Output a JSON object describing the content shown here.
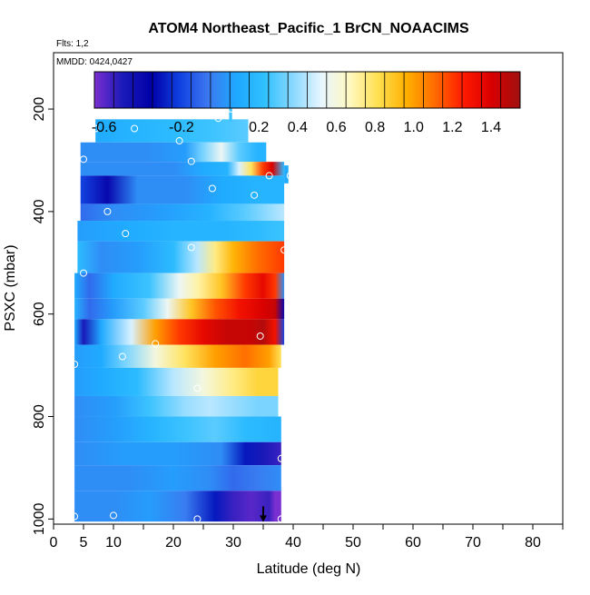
{
  "chart_data": {
    "type": "heatmap",
    "title": "ATOM4 Northeast_Pacific_1 BrCN_NOAACIMS",
    "flights_label": "Flts: 1,2",
    "mmdd_label": "MMDD: 0424,0427",
    "xlabel": "Latitude (deg N)",
    "ylabel": "PSXC (mbar)",
    "xlim": [
      0,
      85
    ],
    "ylim": [
      1010,
      90
    ],
    "y_inverted": true,
    "x_ticks": [
      0,
      5,
      10,
      20,
      30,
      40,
      50,
      60,
      70,
      80
    ],
    "x_tick_labels": [
      "0",
      "5",
      "10",
      "20",
      "30",
      "40",
      "50",
      "60",
      "70",
      "80"
    ],
    "y_ticks": [
      200,
      400,
      600,
      800,
      1000
    ],
    "y_tick_labels": [
      "200",
      "400",
      "600",
      "800",
      "1000"
    ],
    "colorbar": {
      "range": [
        -0.65,
        1.55
      ],
      "tick_values": [
        -0.6,
        -0.2,
        0.2,
        0.4,
        0.6,
        0.8,
        1.0,
        1.2,
        1.4
      ],
      "tick_labels": [
        "-0.6",
        "-0.2",
        "0.2",
        "0.4",
        "0.6",
        "0.8",
        "1.0",
        "1.2",
        "1.4"
      ],
      "stops": [
        "#7a2fd0",
        "#1a1ab8",
        "#0000a8",
        "#1040e0",
        "#3c78f0",
        "#1ea8ff",
        "#30c0ff",
        "#8ad8ff",
        "#e8f6ff",
        "#fff8c0",
        "#ffe050",
        "#ffb000",
        "#ff6a00",
        "#ff1a00",
        "#d80000",
        "#a01010"
      ]
    },
    "bands": [
      {
        "p_top": 220,
        "p_bot": 265,
        "lat_start": 7,
        "lat_end": 32.5,
        "stops": [
          [
            7,
            0.1
          ],
          [
            13,
            0.15
          ],
          [
            20,
            0.2
          ],
          [
            26,
            0.25
          ],
          [
            32.5,
            0.3
          ]
        ]
      },
      {
        "p_top": 265,
        "p_bot": 303,
        "lat_start": 4.5,
        "lat_end": 35.5,
        "stops": [
          [
            4.5,
            0.0
          ],
          [
            15,
            0.0
          ],
          [
            22,
            0.05
          ],
          [
            25,
            0.35
          ],
          [
            28,
            0.55
          ],
          [
            31,
            0.3
          ],
          [
            34,
            0.15
          ],
          [
            35.5,
            0.15
          ]
        ]
      },
      {
        "p_top": 303,
        "p_bot": 330,
        "lat_start": 4.5,
        "lat_end": 38.5,
        "stops": [
          [
            4.5,
            0.0
          ],
          [
            20,
            0.0
          ],
          [
            25,
            0.1
          ],
          [
            29,
            0.15
          ],
          [
            31,
            0.5
          ],
          [
            33,
            0.8
          ],
          [
            35,
            1.2
          ],
          [
            36.5,
            1.4
          ],
          [
            38.5,
            0.2
          ]
        ]
      },
      {
        "p_top": 330,
        "p_bot": 385,
        "lat_start": 4.5,
        "lat_end": 38.5,
        "stops": [
          [
            4.5,
            -0.2
          ],
          [
            9,
            -0.4
          ],
          [
            14,
            0.0
          ],
          [
            22,
            0.0
          ],
          [
            28,
            0.1
          ],
          [
            34,
            0.15
          ],
          [
            38.5,
            0.15
          ]
        ]
      },
      {
        "p_top": 385,
        "p_bot": 418,
        "lat_start": 4.5,
        "lat_end": 38.5,
        "stops": [
          [
            4.5,
            -0.1
          ],
          [
            10,
            0.0
          ],
          [
            18,
            0.05
          ],
          [
            26,
            0.15
          ],
          [
            32,
            0.3
          ],
          [
            38.5,
            0.45
          ]
        ]
      },
      {
        "p_top": 418,
        "p_bot": 458,
        "lat_start": 4,
        "lat_end": 38.5,
        "stops": [
          [
            4,
            0.05
          ],
          [
            12,
            0.1
          ],
          [
            20,
            0.15
          ],
          [
            28,
            0.15
          ],
          [
            34,
            0.2
          ],
          [
            38.5,
            0.25
          ]
        ]
      },
      {
        "p_top": 458,
        "p_bot": 520,
        "lat_start": 4,
        "lat_end": 38.5,
        "stops": [
          [
            4,
            0.2
          ],
          [
            8,
            0.0
          ],
          [
            14,
            0.05
          ],
          [
            20,
            0.2
          ],
          [
            24,
            0.45
          ],
          [
            27,
            0.75
          ],
          [
            30,
            0.95
          ],
          [
            34,
            1.1
          ],
          [
            38.5,
            1.2
          ]
        ]
      },
      {
        "p_top": 520,
        "p_bot": 570,
        "lat_start": 3.5,
        "lat_end": 38.5,
        "stops": [
          [
            3.5,
            0.1
          ],
          [
            6,
            -0.1
          ],
          [
            10,
            0.1
          ],
          [
            16,
            0.25
          ],
          [
            21,
            0.55
          ],
          [
            24,
            0.7
          ],
          [
            28,
            0.9
          ],
          [
            32,
            1.2
          ],
          [
            35,
            1.35
          ],
          [
            37,
            1.2
          ],
          [
            38.5,
            0.0
          ]
        ]
      },
      {
        "p_top": 570,
        "p_bot": 610,
        "lat_start": 3.5,
        "lat_end": 38.5,
        "stops": [
          [
            3.5,
            0.15
          ],
          [
            6,
            -0.1
          ],
          [
            10,
            0.05
          ],
          [
            15,
            0.3
          ],
          [
            19,
            0.55
          ],
          [
            23,
            0.9
          ],
          [
            27,
            1.15
          ],
          [
            31,
            1.3
          ],
          [
            35,
            1.4
          ],
          [
            37,
            1.45
          ],
          [
            38.5,
            -0.4
          ]
        ]
      },
      {
        "p_top": 610,
        "p_bot": 660,
        "lat_start": 3.5,
        "lat_end": 38.5,
        "stops": [
          [
            3.5,
            0.1
          ],
          [
            5,
            -0.5
          ],
          [
            8,
            0.1
          ],
          [
            13,
            0.5
          ],
          [
            17,
            1.0
          ],
          [
            21,
            1.2
          ],
          [
            25,
            1.35
          ],
          [
            29,
            1.45
          ],
          [
            33,
            1.45
          ],
          [
            35,
            1.5
          ],
          [
            37,
            1.3
          ],
          [
            38.5,
            -0.2
          ]
        ]
      },
      {
        "p_top": 660,
        "p_bot": 705,
        "lat_start": 3.5,
        "lat_end": 38,
        "stops": [
          [
            3.5,
            0.05
          ],
          [
            8,
            0.1
          ],
          [
            12,
            0.35
          ],
          [
            17,
            0.6
          ],
          [
            22,
            0.8
          ],
          [
            27,
            1.0
          ],
          [
            32,
            1.1
          ],
          [
            36,
            1.0
          ],
          [
            38,
            0.8
          ]
        ]
      },
      {
        "p_top": 705,
        "p_bot": 760,
        "lat_start": 3.5,
        "lat_end": 37.5,
        "stops": [
          [
            3.5,
            0.05
          ],
          [
            8,
            0.1
          ],
          [
            14,
            0.2
          ],
          [
            20,
            0.45
          ],
          [
            25,
            0.6
          ],
          [
            30,
            0.75
          ],
          [
            34,
            0.85
          ],
          [
            37.5,
            0.85
          ]
        ]
      },
      {
        "p_top": 760,
        "p_bot": 800,
        "lat_start": 3.5,
        "lat_end": 37.5,
        "stops": [
          [
            3.5,
            0.0
          ],
          [
            10,
            0.05
          ],
          [
            16,
            0.25
          ],
          [
            22,
            0.4
          ],
          [
            26,
            0.45
          ],
          [
            30,
            0.4
          ],
          [
            34,
            0.35
          ],
          [
            37.5,
            0.35
          ]
        ]
      },
      {
        "p_top": 800,
        "p_bot": 850,
        "lat_start": 3.5,
        "lat_end": 38,
        "stops": [
          [
            3.5,
            0.0
          ],
          [
            10,
            0.05
          ],
          [
            16,
            0.15
          ],
          [
            22,
            0.25
          ],
          [
            27,
            0.3
          ],
          [
            32,
            0.2
          ],
          [
            38,
            0.15
          ]
        ]
      },
      {
        "p_top": 850,
        "p_bot": 895,
        "lat_start": 3.5,
        "lat_end": 38,
        "stops": [
          [
            3.5,
            0.0
          ],
          [
            12,
            0.05
          ],
          [
            20,
            0.05
          ],
          [
            28,
            0.0
          ],
          [
            32,
            -0.3
          ],
          [
            35,
            -0.5
          ],
          [
            38,
            -0.55
          ]
        ]
      },
      {
        "p_top": 895,
        "p_bot": 945,
        "lat_start": 3.5,
        "lat_end": 38,
        "stops": [
          [
            3.5,
            0.0
          ],
          [
            12,
            0.0
          ],
          [
            20,
            0.05
          ],
          [
            26,
            0.0
          ],
          [
            30,
            -0.1
          ],
          [
            34,
            -0.05
          ],
          [
            38,
            0.0
          ]
        ]
      },
      {
        "p_top": 945,
        "p_bot": 1005,
        "lat_start": 3.5,
        "lat_end": 38,
        "stops": [
          [
            3.5,
            0.0
          ],
          [
            10,
            0.0
          ],
          [
            16,
            0.05
          ],
          [
            22,
            -0.05
          ],
          [
            27,
            -0.3
          ],
          [
            30,
            -0.55
          ],
          [
            33,
            -0.6
          ],
          [
            36,
            -0.55
          ],
          [
            37,
            -0.65
          ],
          [
            38,
            -0.65
          ]
        ]
      },
      {
        "p_top": 165,
        "p_bot": 225,
        "lat_start": 29.3,
        "lat_end": 29.8,
        "stops": [
          [
            29.3,
            0.25
          ],
          [
            29.8,
            0.25
          ]
        ]
      },
      {
        "p_top": 310,
        "p_bot": 345,
        "lat_start": 38.5,
        "lat_end": 39.2,
        "stops": [
          [
            38.5,
            0.1
          ],
          [
            39.2,
            0.1
          ]
        ]
      }
    ],
    "sample_points": [
      {
        "lat": 29.7,
        "p": 200
      },
      {
        "lat": 27.5,
        "p": 218
      },
      {
        "lat": 7,
        "p": 238
      },
      {
        "lat": 13.5,
        "p": 238
      },
      {
        "lat": 21,
        "p": 262
      },
      {
        "lat": 5,
        "p": 298
      },
      {
        "lat": 23,
        "p": 302
      },
      {
        "lat": 36,
        "p": 330
      },
      {
        "lat": 39.5,
        "p": 330
      },
      {
        "lat": 26.5,
        "p": 355
      },
      {
        "lat": 33.5,
        "p": 368
      },
      {
        "lat": 9,
        "p": 400
      },
      {
        "lat": 12,
        "p": 443
      },
      {
        "lat": 23,
        "p": 470
      },
      {
        "lat": 38.5,
        "p": 475
      },
      {
        "lat": 5,
        "p": 520
      },
      {
        "lat": 34.5,
        "p": 643
      },
      {
        "lat": 17,
        "p": 658
      },
      {
        "lat": 11.5,
        "p": 683
      },
      {
        "lat": 3.5,
        "p": 698
      },
      {
        "lat": 24,
        "p": 745
      },
      {
        "lat": 38,
        "p": 882
      },
      {
        "lat": 10,
        "p": 993
      },
      {
        "lat": 3.5,
        "p": 995
      },
      {
        "lat": 24,
        "p": 1000
      },
      {
        "lat": 38,
        "p": 1000
      }
    ],
    "marker": {
      "lat": 35,
      "p": 1000
    }
  }
}
